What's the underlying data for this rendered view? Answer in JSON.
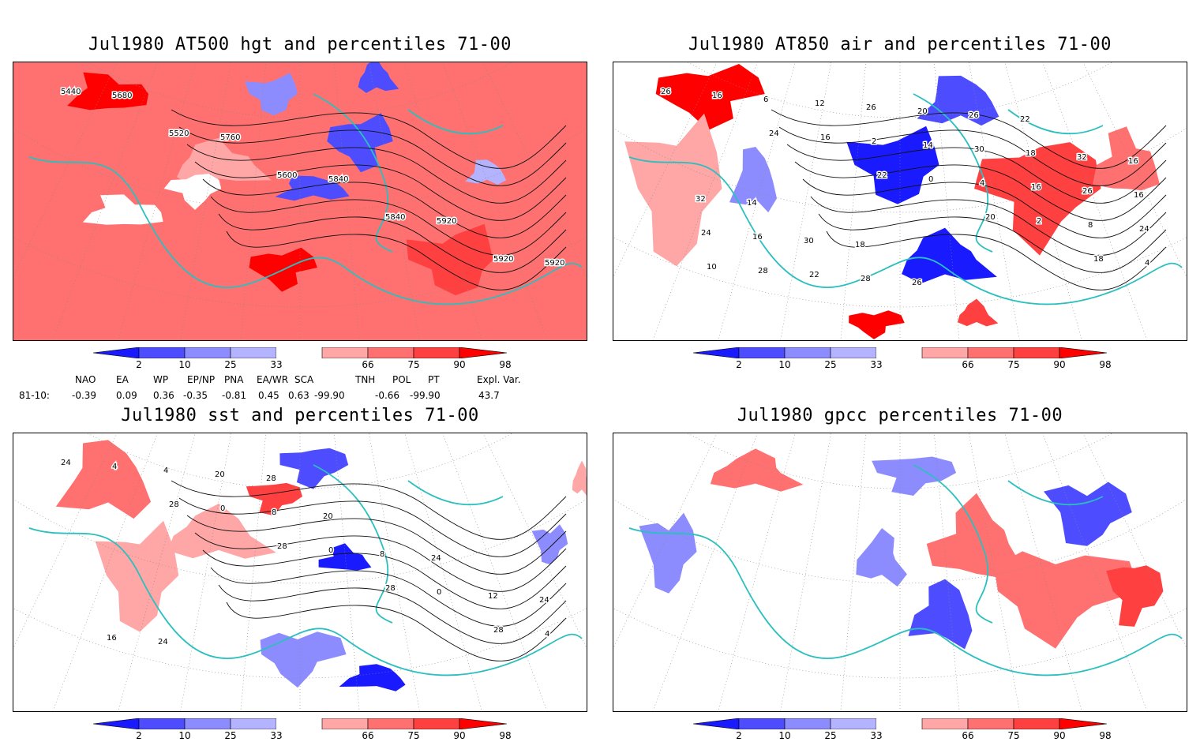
{
  "colors": {
    "coast": "#2bbfbf",
    "contour": "#111111",
    "blue_2": "#1a1aff",
    "blue_10": "#4d4dff",
    "blue_25": "#8c8cff",
    "blue_33": "#b3b3ff",
    "red_66": "#ffa6a6",
    "red_75": "#ff7070",
    "red_90": "#ff4040",
    "red_98": "#ff0000"
  },
  "colorbar": {
    "labels": [
      "2",
      "10",
      "25",
      "33",
      "66",
      "75",
      "90",
      "98"
    ]
  },
  "panels": [
    {
      "title": "Jul1980 AT500 hgt and percentiles 71-00",
      "contour_labels": [
        "5440",
        "5520",
        "5600",
        "5840",
        "5920",
        "5680",
        "5760",
        "5840",
        "5920",
        "5920"
      ]
    },
    {
      "title": "Jul1980 AT850 air and percentiles 71-00",
      "contour_labels": [
        "26",
        "24",
        "22",
        "20",
        "18",
        "16",
        "16",
        "0",
        "2",
        "4",
        "6",
        "2",
        "4",
        "8",
        "10",
        "12",
        "14",
        "16",
        "24",
        "28",
        "26",
        "30",
        "26",
        "24",
        "22",
        "20",
        "18",
        "16",
        "16",
        "28",
        "26",
        "32",
        "32",
        "30",
        "26",
        "22",
        "16",
        "14",
        "18"
      ]
    },
    {
      "title": "Jul1980 sst and percentiles 71-00",
      "contour_labels": [
        "24",
        "28",
        "28",
        "28",
        "28",
        "4",
        "0",
        "0",
        "0",
        "4",
        "4",
        "8",
        "8",
        "12",
        "16",
        "20",
        "20",
        "24",
        "24",
        "24",
        "28"
      ]
    },
    {
      "title": "Jul1980 gpcc percentiles 71-00",
      "contour_labels": []
    }
  ],
  "indices": {
    "headers": [
      "NAO",
      "EA",
      "WP",
      "EP/NP",
      "PNA",
      "EA/WR",
      "SCA",
      "TNH",
      "POL",
      "PT",
      "Expl. Var."
    ],
    "row_label": "81-10:",
    "values": [
      "-0.39",
      "0.09",
      "0.36",
      "-0.35",
      "-0.81",
      "0.45",
      "0.63",
      "-99.90",
      "-0.66",
      "-99.90",
      "43.7"
    ]
  }
}
